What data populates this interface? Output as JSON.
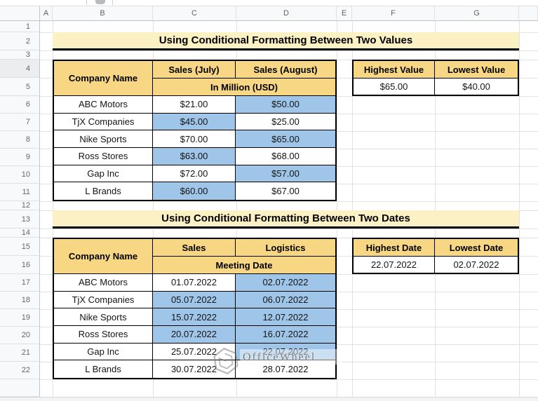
{
  "sheet": {
    "column_headers": [
      "",
      "A",
      "B",
      "C",
      "D",
      "E",
      "F",
      "G",
      ""
    ],
    "row_numbers": [
      "1",
      "2",
      "3",
      "4",
      "5",
      "6",
      "7",
      "8",
      "9",
      "10",
      "11",
      "12",
      "13",
      "14",
      "15",
      "16",
      "17",
      "18",
      "19",
      "20",
      "21",
      "22",
      ""
    ]
  },
  "section_values": {
    "title": "Using Conditional Formatting Between Two Values",
    "table": {
      "company_header": "Company Name",
      "col1_header": "Sales (July)",
      "col2_header": "Sales (August)",
      "unit_header": "In Million (USD)",
      "rows": [
        {
          "company": "ABC Motors",
          "col1": "$21.00",
          "col2": "$50.00",
          "col1_hl": false,
          "col2_hl": true
        },
        {
          "company": "TjX Companies",
          "col1": "$45.00",
          "col2": "$25.00",
          "col1_hl": true,
          "col2_hl": false
        },
        {
          "company": "Nike Sports",
          "col1": "$70.00",
          "col2": "$65.00",
          "col1_hl": false,
          "col2_hl": true
        },
        {
          "company": "Ross Stores",
          "col1": "$63.00",
          "col2": "$68.00",
          "col1_hl": true,
          "col2_hl": false
        },
        {
          "company": "Gap Inc",
          "col1": "$72.00",
          "col2": "$57.00",
          "col1_hl": false,
          "col2_hl": true
        },
        {
          "company": "L Brands",
          "col1": "$60.00",
          "col2": "$67.00",
          "col1_hl": true,
          "col2_hl": false
        }
      ]
    },
    "summary": {
      "header1": "Highest Value",
      "header2": "Lowest Value",
      "value1": "$65.00",
      "value2": "$40.00"
    }
  },
  "section_dates": {
    "title": "Using Conditional Formatting Between Two Dates",
    "table": {
      "company_header": "Company Name",
      "col1_header": "Sales",
      "col2_header": "Logistics",
      "unit_header": "Meeting Date",
      "rows": [
        {
          "company": "ABC Motors",
          "col1": "01.07.2022",
          "col2": "02.07.2022",
          "col1_hl": false,
          "col2_hl": true
        },
        {
          "company": "TjX Companies",
          "col1": "05.07.2022",
          "col2": "06.07.2022",
          "col1_hl": true,
          "col2_hl": true
        },
        {
          "company": "Nike Sports",
          "col1": "15.07.2022",
          "col2": "12.07.2022",
          "col1_hl": true,
          "col2_hl": true
        },
        {
          "company": "Ross Stores",
          "col1": "20.07.2022",
          "col2": "16.07.2022",
          "col1_hl": true,
          "col2_hl": true
        },
        {
          "company": "Gap Inc",
          "col1": "25.07.2022",
          "col2": "22.07.2022",
          "col1_hl": false,
          "col2_hl": true
        },
        {
          "company": "L Brands",
          "col1": "30.07.2022",
          "col2": "28.07.2022",
          "col1_hl": false,
          "col2_hl": false
        }
      ]
    },
    "summary": {
      "header1": "Highest Date",
      "header2": "Lowest Date",
      "value1": "22.07.2022",
      "value2": "02.07.2022"
    }
  },
  "watermark": {
    "text": "OfficeWheel"
  },
  "colors": {
    "header_gold": "#F8D784",
    "title_cream": "#FCF0C5",
    "highlight_blue": "#9FC5E8"
  }
}
